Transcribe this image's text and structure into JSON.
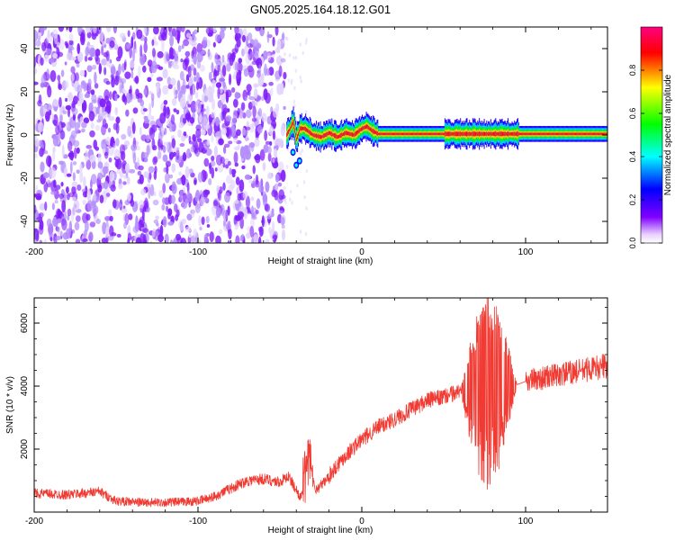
{
  "page": {
    "title": "GN05.2025.164.18.12.G01"
  },
  "chart_data": [
    {
      "type": "heatmap",
      "xlabel": "Height of straight line (km)",
      "ylabel": "Frequency (Hz)",
      "xlim": [
        -200,
        150
      ],
      "ylim": [
        -50,
        50
      ],
      "xticks": [
        -200,
        -100,
        0,
        100
      ],
      "yticks": [
        -40,
        -20,
        0,
        20,
        40
      ],
      "colorbar": {
        "label": "Normalized spectral amplitude",
        "range": [
          0,
          1
        ],
        "ticks": [
          "0.0",
          "0.2",
          "0.4",
          "0.6",
          "0.8"
        ],
        "colormap": [
          "#ffffff",
          "#8000ff",
          "#0000ff",
          "#00ffff",
          "#00ff00",
          "#ffff00",
          "#ff0000",
          "#ff0080"
        ]
      },
      "noise_region": {
        "x": [
          -200,
          -47
        ],
        "freq": [
          -50,
          50
        ],
        "amplitude": 0.12
      },
      "signal_ridge": [
        {
          "x": -44,
          "freq": 3
        },
        {
          "x": -42,
          "freq": 6
        },
        {
          "x": -40,
          "freq": -2
        },
        {
          "x": -38,
          "freq": 3
        },
        {
          "x": -35,
          "freq": 3
        },
        {
          "x": -30,
          "freq": 0
        },
        {
          "x": -25,
          "freq": -1
        },
        {
          "x": -20,
          "freq": 1
        },
        {
          "x": -15,
          "freq": -1
        },
        {
          "x": -10,
          "freq": 1
        },
        {
          "x": -5,
          "freq": 0
        },
        {
          "x": 0,
          "freq": 3
        },
        {
          "x": 3,
          "freq": 4
        },
        {
          "x": 6,
          "freq": 2
        },
        {
          "x": 10,
          "freq": 0.5
        },
        {
          "x": 50,
          "freq": 0.5
        },
        {
          "x": 95,
          "freq": 0.5
        },
        {
          "x": 150,
          "freq": 0.5
        }
      ]
    },
    {
      "type": "line",
      "xlabel": "Height of straight line (km)",
      "ylabel": "SNR (10 * v/v)",
      "xlim": [
        -200,
        150
      ],
      "ylim": [
        0,
        6800
      ],
      "xticks": [
        -200,
        -100,
        0,
        100
      ],
      "yticks": [
        2000,
        4000,
        6000
      ],
      "color": "#f03a32",
      "trend": [
        {
          "x": -200,
          "y": 600
        },
        {
          "x": -180,
          "y": 550
        },
        {
          "x": -160,
          "y": 650
        },
        {
          "x": -150,
          "y": 350
        },
        {
          "x": -130,
          "y": 300
        },
        {
          "x": -110,
          "y": 320
        },
        {
          "x": -100,
          "y": 350
        },
        {
          "x": -90,
          "y": 500
        },
        {
          "x": -80,
          "y": 750
        },
        {
          "x": -70,
          "y": 1000
        },
        {
          "x": -60,
          "y": 1050
        },
        {
          "x": -50,
          "y": 950
        },
        {
          "x": -45,
          "y": 1150
        },
        {
          "x": -40,
          "y": 700
        },
        {
          "x": -37,
          "y": 450
        },
        {
          "x": -32,
          "y": 1300
        },
        {
          "x": -28,
          "y": 700
        },
        {
          "x": -22,
          "y": 1000
        },
        {
          "x": -15,
          "y": 1500
        },
        {
          "x": -10,
          "y": 1800
        },
        {
          "x": 0,
          "y": 2300
        },
        {
          "x": 10,
          "y": 2700
        },
        {
          "x": 20,
          "y": 2950
        },
        {
          "x": 30,
          "y": 3250
        },
        {
          "x": 40,
          "y": 3550
        },
        {
          "x": 50,
          "y": 3650
        },
        {
          "x": 60,
          "y": 3850
        },
        {
          "x": 70,
          "y": 3950
        },
        {
          "x": 80,
          "y": 4000
        },
        {
          "x": 90,
          "y": 4050
        },
        {
          "x": 95,
          "y": 4050
        },
        {
          "x": 100,
          "y": 4150
        },
        {
          "x": 110,
          "y": 4250
        },
        {
          "x": 120,
          "y": 4350
        },
        {
          "x": 130,
          "y": 4450
        },
        {
          "x": 140,
          "y": 4550
        },
        {
          "x": 150,
          "y": 4650
        }
      ],
      "spike_region": {
        "x": [
          -36,
          -30
        ],
        "peak": 2600
      },
      "oscillation_region": {
        "x": [
          60,
          100
        ],
        "peak": 6800,
        "trough": 700
      }
    }
  ]
}
